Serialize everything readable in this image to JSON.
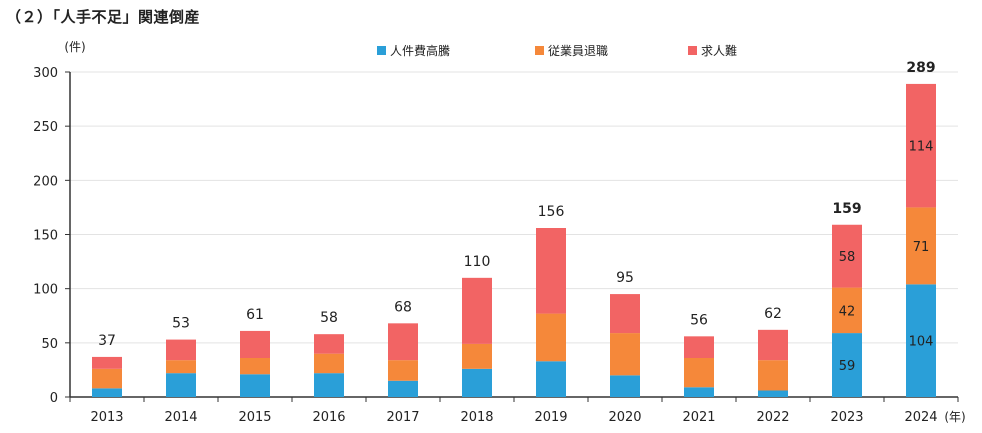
{
  "title": "（２）「人手不足」関連倒産",
  "chart_data": {
    "type": "bar",
    "stacked": true,
    "title": "（２）「人手不足」関連倒産",
    "ylabel": "(件)",
    "xlabel_unit": "(年)",
    "ylim": [
      0,
      300
    ],
    "yticks": [
      0,
      50,
      100,
      150,
      200,
      250,
      300
    ],
    "grid": true,
    "legend_placement": "top-center",
    "categories": [
      "2013",
      "2014",
      "2015",
      "2016",
      "2017",
      "2018",
      "2019",
      "2020",
      "2021",
      "2022",
      "2023",
      "2024"
    ],
    "series": [
      {
        "name": "人件費高騰",
        "color": "#2a9fd8",
        "values": [
          8,
          22,
          21,
          22,
          15,
          26,
          33,
          20,
          9,
          6,
          59,
          104
        ]
      },
      {
        "name": "従業員退職",
        "color": "#f5883a",
        "values": [
          18,
          12,
          15,
          18,
          19,
          23,
          44,
          39,
          27,
          28,
          42,
          71
        ]
      },
      {
        "name": "求人難",
        "color": "#f26464",
        "values": [
          11,
          19,
          25,
          18,
          34,
          61,
          79,
          36,
          20,
          28,
          58,
          114
        ]
      }
    ],
    "totals": [
      37,
      53,
      61,
      58,
      68,
      110,
      156,
      95,
      56,
      62,
      159,
      289
    ],
    "bold_totals": [
      "2023",
      "2024"
    ],
    "segment_labels_shown_for": [
      "2023",
      "2024"
    ]
  }
}
